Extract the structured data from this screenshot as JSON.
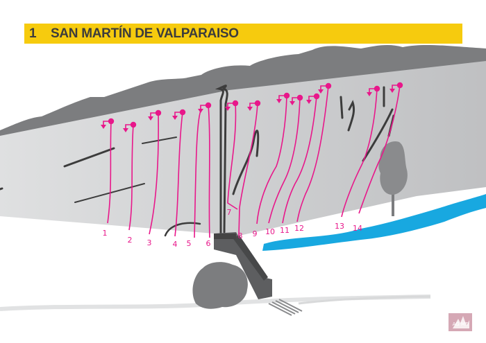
{
  "header": {
    "number": "1",
    "title": "SAN MARTÍN DE VALPARAISO"
  },
  "routes": [
    {
      "label": "1"
    },
    {
      "label": "2"
    },
    {
      "label": "3"
    },
    {
      "label": "4"
    },
    {
      "label": "5"
    },
    {
      "label": "6"
    },
    {
      "label": "7"
    },
    {
      "label": "8"
    },
    {
      "label": "9"
    },
    {
      "label": "10"
    },
    {
      "label": "11"
    },
    {
      "label": "12"
    },
    {
      "label": "13"
    },
    {
      "label": "14"
    }
  ],
  "colors": {
    "route": "#e8178a",
    "title_bg": "#f6cb0e",
    "river": "#18a8e0",
    "rock": "#d4d5d7",
    "hills": "#7c7d7f"
  },
  "logo": {
    "text": "AGME"
  }
}
